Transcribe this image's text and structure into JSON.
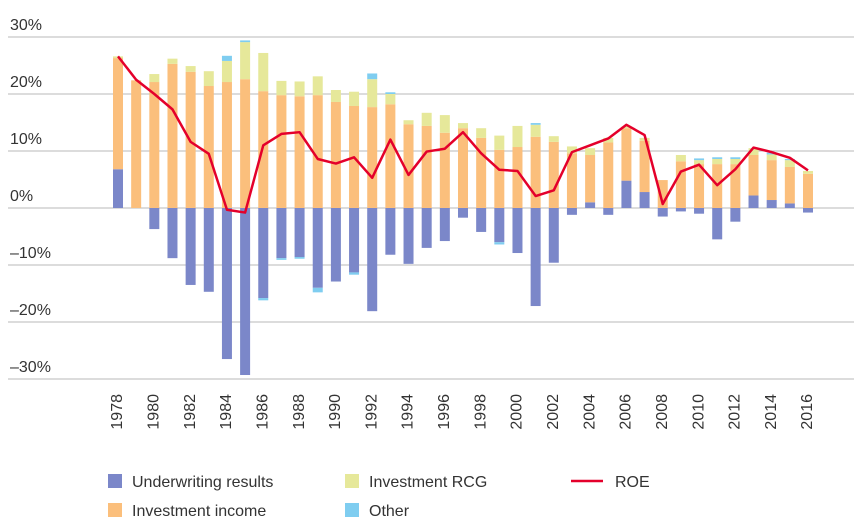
{
  "chart_data": {
    "type": "bar",
    "stacked": true,
    "categories": [
      "1978",
      null,
      "1980",
      null,
      "1982",
      null,
      "1984",
      null,
      "1986",
      null,
      "1988",
      null,
      "1990",
      null,
      "1992",
      null,
      "1994",
      null,
      "1996",
      null,
      "1998",
      null,
      "2000",
      null,
      "2002",
      null,
      "2004",
      null,
      "2006",
      null,
      "2008",
      null,
      "2010",
      null,
      "2012",
      null,
      "2014",
      null,
      "2016"
    ],
    "series": [
      {
        "name": "Underwriting results",
        "color": "#7b87c9",
        "type": "bar",
        "values": [
          6.8,
          0,
          -3.7,
          -8.8,
          -13.5,
          -14.7,
          -26.5,
          -29.3,
          -15.8,
          -8.8,
          -8.6,
          -14,
          -12.9,
          -11.3,
          -18.1,
          -8.2,
          -9.8,
          -7,
          -5.8,
          -1.7,
          -4.2,
          -6,
          -7.9,
          -17.2,
          -9.6,
          -1.2,
          1,
          -1.2,
          4.8,
          2.8,
          -1.5,
          -0.6,
          -1,
          -5.5,
          -2.4,
          2.2,
          1.4,
          0.8,
          -0.8
        ]
      },
      {
        "name": "Investment income",
        "color": "#fbbf7c",
        "type": "bar",
        "values": [
          19.5,
          22.4,
          22.1,
          25.3,
          23.9,
          21.4,
          22.1,
          22.6,
          20.5,
          19.8,
          19.6,
          19.8,
          18.6,
          17.9,
          17.7,
          18.2,
          14.7,
          14.4,
          13.2,
          14,
          12.3,
          10.2,
          10.7,
          12.5,
          11.6,
          9.6,
          8.3,
          11.5,
          9.2,
          9,
          4.9,
          8.2,
          7.7,
          7.7,
          7.7,
          7.1,
          7,
          6.4,
          6
        ]
      },
      {
        "name": "Investment RCG",
        "color": "#e6e89a",
        "type": "bar",
        "values": [
          0.3,
          0,
          1.4,
          0.9,
          1,
          2.6,
          3.7,
          6.5,
          6.7,
          2.5,
          2.6,
          3.3,
          2.1,
          2.5,
          4.9,
          1.8,
          0.7,
          2.3,
          3.1,
          0.9,
          1.7,
          2.5,
          3.7,
          2.1,
          1,
          1.2,
          1.2,
          0.8,
          0.3,
          0.5,
          0,
          1.1,
          0.7,
          0.9,
          0.9,
          1.2,
          1,
          1.2,
          0.5
        ]
      },
      {
        "name": "Other",
        "color": "#7fcdf0",
        "type": "bar",
        "values": [
          0,
          0,
          0,
          0,
          0,
          0,
          0.9,
          0.3,
          -0.4,
          -0.3,
          -0.3,
          -0.8,
          0,
          -0.4,
          1,
          0.3,
          0,
          0,
          0,
          0,
          0,
          -0.4,
          0,
          0.3,
          0,
          0,
          0,
          0,
          0,
          0,
          0,
          0,
          0.3,
          0.3,
          0.3,
          0,
          0.3,
          0.2,
          0
        ]
      },
      {
        "name": "ROE",
        "color": "#e4002b",
        "type": "line",
        "values": [
          26.6,
          22.5,
          20,
          17.3,
          11.6,
          9.5,
          -0.3,
          -0.8,
          11,
          13,
          13.3,
          8.6,
          7.8,
          8.9,
          5.3,
          12,
          5.8,
          9.9,
          10.4,
          13.3,
          9.6,
          6.7,
          6.5,
          2.1,
          3.1,
          9.8,
          11,
          12.2,
          14.6,
          12.8,
          0.7,
          6.4,
          7.6,
          4,
          6.8,
          10.6,
          9.8,
          8.8,
          6.6
        ]
      }
    ],
    "ylim": [
      -30,
      30
    ],
    "yticks": [
      {
        "value": 30,
        "label": "30%"
      },
      {
        "value": 20,
        "label": "20%"
      },
      {
        "value": 10,
        "label": "10%"
      },
      {
        "value": 0,
        "label": "0%"
      },
      {
        "value": -10,
        "label": "–10%"
      },
      {
        "value": -20,
        "label": "–20%"
      },
      {
        "value": -30,
        "label": "–30%"
      }
    ],
    "grid": true,
    "legend": "bottom"
  }
}
